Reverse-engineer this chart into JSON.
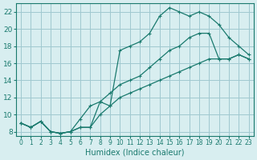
{
  "xlabel": "Humidex (Indice chaleur)",
  "bg_color": "#d8eef0",
  "grid_color": "#a0c8d0",
  "line_color": "#1a7a6e",
  "xlim": [
    -0.5,
    23.5
  ],
  "ylim": [
    7.5,
    23.0
  ],
  "xticks": [
    0,
    1,
    2,
    3,
    4,
    5,
    6,
    7,
    8,
    9,
    10,
    11,
    12,
    13,
    14,
    15,
    16,
    17,
    18,
    19,
    20,
    21,
    22,
    23
  ],
  "yticks": [
    8,
    10,
    12,
    14,
    16,
    18,
    20,
    22
  ],
  "line1_x": [
    0,
    1,
    2,
    3,
    4,
    5,
    6,
    7,
    8,
    9,
    10,
    11,
    12,
    13,
    14,
    15,
    16,
    17,
    18,
    19,
    20,
    21,
    22,
    23
  ],
  "line1_y": [
    9.0,
    8.5,
    9.2,
    8.0,
    7.8,
    8.0,
    9.5,
    11.0,
    11.5,
    11.0,
    17.5,
    18.0,
    18.5,
    19.5,
    21.5,
    22.5,
    22.0,
    21.5,
    22.0,
    21.5,
    20.5,
    19.0,
    18.0,
    17.0
  ],
  "line2_x": [
    0,
    1,
    2,
    3,
    4,
    5,
    6,
    7,
    8,
    9,
    10,
    11,
    12,
    13,
    14,
    15,
    16,
    17,
    18,
    19,
    20,
    21,
    22,
    23
  ],
  "line2_y": [
    9.0,
    8.5,
    9.2,
    8.0,
    7.8,
    8.0,
    8.5,
    8.5,
    11.5,
    12.5,
    13.5,
    14.0,
    14.5,
    15.5,
    16.5,
    17.5,
    18.0,
    19.0,
    19.5,
    19.5,
    16.5,
    16.5,
    17.0,
    16.5
  ],
  "line3_x": [
    0,
    1,
    2,
    3,
    4,
    5,
    6,
    7,
    8,
    9,
    10,
    11,
    12,
    13,
    14,
    15,
    16,
    17,
    18,
    19,
    20,
    21,
    22,
    23
  ],
  "line3_y": [
    9.0,
    8.5,
    9.2,
    8.0,
    7.8,
    8.0,
    8.5,
    8.5,
    10.0,
    11.0,
    12.0,
    12.5,
    13.0,
    13.5,
    14.0,
    14.5,
    15.0,
    15.5,
    16.0,
    16.5,
    16.5,
    16.5,
    17.0,
    16.5
  ]
}
